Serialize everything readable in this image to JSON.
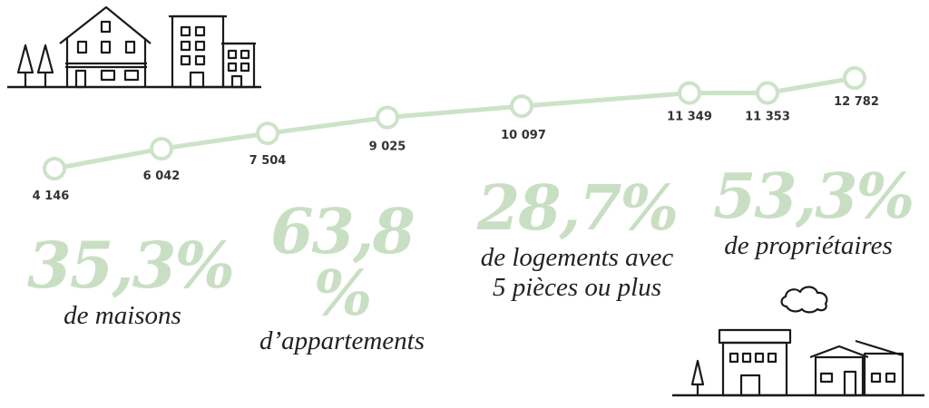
{
  "chart_data": {
    "type": "line",
    "title": "",
    "xlabel": "",
    "ylabel": "",
    "values": [
      4146,
      6042,
      7504,
      9025,
      10097,
      11349,
      11353,
      12782
    ],
    "value_labels": [
      "4 146",
      "6 042",
      "7 504",
      "9 025",
      "10 097",
      "11 349",
      "11 353",
      "12 782"
    ],
    "ylim": [
      0,
      14000
    ],
    "grid": false,
    "legend": "none",
    "line_color": "#cde3c8",
    "marker_fill": "#ffffff"
  },
  "stats": [
    {
      "value": "35,3%",
      "label": "de maisons"
    },
    {
      "value": "63,8 %",
      "label": "d’appartements"
    },
    {
      "value": "28,7%",
      "label_line1": "de logements avec",
      "label_line2": "5 pièces ou plus"
    },
    {
      "value": "53,3%",
      "label": "de propriétaires"
    }
  ],
  "colors": {
    "accent": "#c9dfc4",
    "text": "#222222",
    "ink": "#1a1a1a"
  },
  "icons": {
    "top_left": "houses-and-buildings-illustration",
    "bottom_right": "buildings-with-cloud-illustration"
  }
}
